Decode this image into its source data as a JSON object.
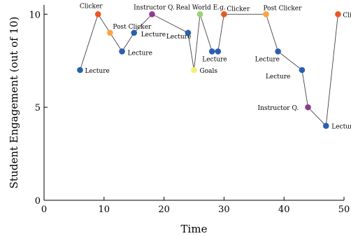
{
  "chart_data": {
    "type": "scatter",
    "title": "",
    "xlabel": "Time",
    "ylabel": "Student Engagement (out of 10)",
    "xlim": [
      0,
      50
    ],
    "ylim": [
      0,
      10.5
    ],
    "xticks": [
      "0",
      "10",
      "20",
      "30",
      "40",
      "50"
    ],
    "yticks": [
      "0",
      "5",
      "10"
    ],
    "grid": false,
    "line": true,
    "colors": {
      "Lecture": "#2a5fb0",
      "Clicker": "#ee5524",
      "Post Clicker": "#f9a546",
      "Instructor Q.": "#8e3c8e",
      "Real World E.g.": "#9ad27a",
      "Goals": "#f4ee77"
    },
    "points": [
      {
        "x": 6,
        "y": 7,
        "label": "Lecture",
        "category": "Lecture"
      },
      {
        "x": 9,
        "y": 10,
        "label": "Clicker",
        "category": "Clicker"
      },
      {
        "x": 11,
        "y": 9,
        "label": "Post Clicker",
        "category": "Post Clicker"
      },
      {
        "x": 13,
        "y": 8,
        "label": "Lecture",
        "category": "Lecture"
      },
      {
        "x": 15,
        "y": 9,
        "label": "Lecture",
        "category": "Lecture"
      },
      {
        "x": 18,
        "y": 10,
        "label": "Instructor Q.",
        "category": "Instructor Q."
      },
      {
        "x": 24,
        "y": 9,
        "label": "Lecture",
        "category": "Lecture"
      },
      {
        "x": 25,
        "y": 7,
        "label": "Goals",
        "category": "Goals"
      },
      {
        "x": 26,
        "y": 10,
        "label": "Real World E.g.",
        "category": "Real World E.g."
      },
      {
        "x": 28,
        "y": 8,
        "label": "Lecture",
        "category": "Lecture"
      },
      {
        "x": 29,
        "y": 8,
        "label": "",
        "category": "Lecture"
      },
      {
        "x": 30,
        "y": 10,
        "label": "Clicker",
        "category": "Clicker"
      },
      {
        "x": 37,
        "y": 10,
        "label": "Post Clicker",
        "category": "Post Clicker"
      },
      {
        "x": 39,
        "y": 8,
        "label": "Lecture",
        "category": "Lecture"
      },
      {
        "x": 43,
        "y": 7,
        "label": "Lecture",
        "category": "Lecture"
      },
      {
        "x": 44,
        "y": 5,
        "label": "Instructor Q.",
        "category": "Instructor Q."
      },
      {
        "x": 47,
        "y": 4,
        "label": "Lecture",
        "category": "Lecture"
      },
      {
        "x": 49,
        "y": 10,
        "label": "Clicker",
        "category": "Clicker"
      }
    ]
  }
}
